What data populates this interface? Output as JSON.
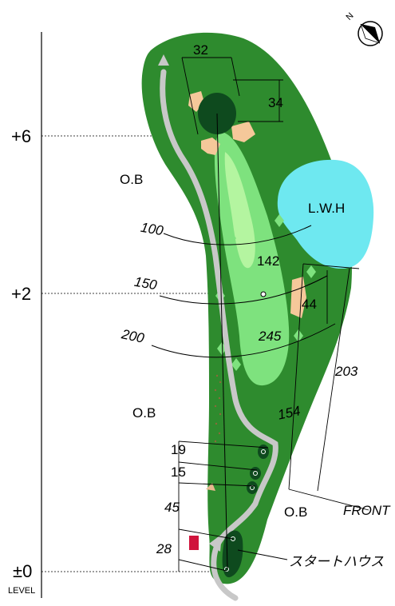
{
  "elevation": {
    "plus6": "+6",
    "plus2": "+2",
    "zero": "±0",
    "level": "LEVEL"
  },
  "green": {
    "depth": "32",
    "width": "34"
  },
  "hazard": {
    "water": "L.W.H",
    "ob_left_upper": "O.B",
    "ob_left_lower": "O.B",
    "ob_right": "O.B",
    "bunker_width": "44"
  },
  "arcs": {
    "d100": "100",
    "d150": "150",
    "d200": "200"
  },
  "distances": {
    "d142": "142",
    "d245": "245",
    "d154": "154",
    "d203": "203"
  },
  "tees": {
    "t19": "19",
    "t15": "15",
    "t45": "45",
    "t28": "28",
    "front": "FRONT",
    "start_house": "スタートハウス"
  },
  "colors": {
    "rough": "#2e8b2e",
    "fairway": "#7ee27e",
    "fairway_core": "#b4f5a0",
    "green": "#0e4a1e",
    "water": "#6ee8f0",
    "bunker": "#f5c89a",
    "cart_path": "#c8c8c8",
    "start_house": "#d0143c"
  }
}
